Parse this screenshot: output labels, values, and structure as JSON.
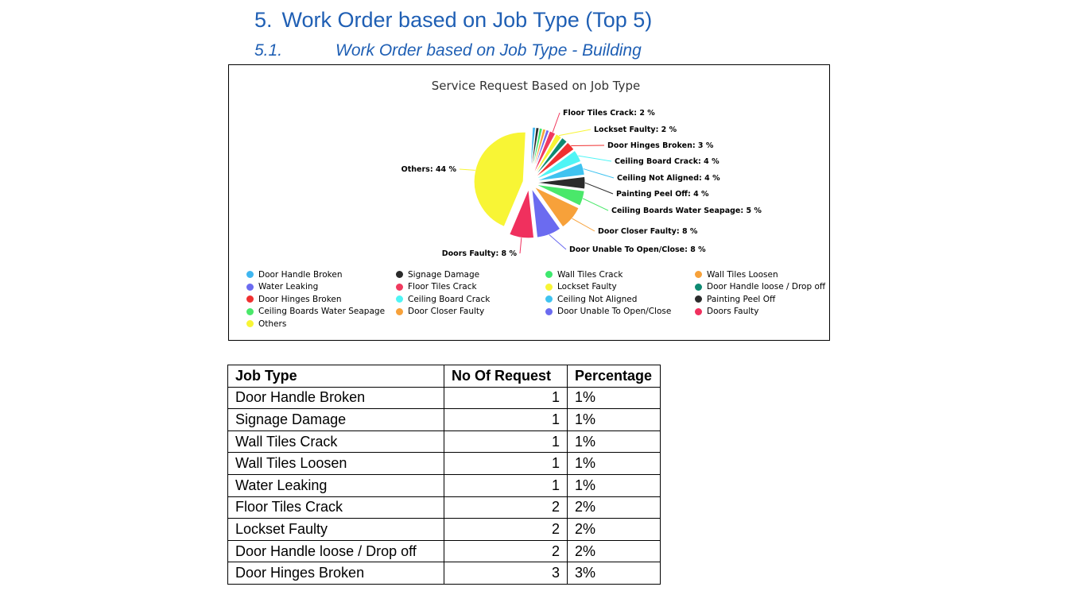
{
  "heading": {
    "number": "5.",
    "title": "Work Order based on Job Type (Top 5)"
  },
  "subheading": {
    "number": "5.1.",
    "title": "Work Order based on Job Type - Building"
  },
  "chart_data": {
    "type": "pie",
    "title": "Service Request Based on Job Type",
    "slices": [
      {
        "name": "Door Handle Broken",
        "value": 1,
        "color": "#3fb6f0",
        "label": ""
      },
      {
        "name": "Signage Damage",
        "value": 1,
        "color": "#2b2b2b",
        "label": ""
      },
      {
        "name": "Wall Tiles Crack",
        "value": 1,
        "color": "#3ee86e",
        "label": ""
      },
      {
        "name": "Wall Tiles Loosen",
        "value": 1,
        "color": "#f7a13a",
        "label": ""
      },
      {
        "name": "Water Leaking",
        "value": 1,
        "color": "#6b6bf0",
        "label": ""
      },
      {
        "name": "Floor Tiles Crack",
        "value": 2,
        "color": "#f03a5e",
        "label": "Floor Tiles Crack: 2 %"
      },
      {
        "name": "Lockset Faulty",
        "value": 2,
        "color": "#f8f535",
        "label": "Lockset Faulty: 2 %"
      },
      {
        "name": "Door Handle loose / Drop off",
        "value": 2,
        "color": "#0e8a72",
        "label": ""
      },
      {
        "name": "Door Hinges Broken",
        "value": 3,
        "color": "#f03030",
        "label": "Door Hinges Broken: 3 %"
      },
      {
        "name": "Ceiling Board Crack",
        "value": 4,
        "color": "#4ff5f5",
        "label": "Ceiling Board Crack: 4 %"
      },
      {
        "name": "Ceiling Not Aligned",
        "value": 4,
        "color": "#3fc3f0",
        "label": "Ceiling Not Aligned: 4 %"
      },
      {
        "name": "Painting Peel Off",
        "value": 4,
        "color": "#2b2b2b",
        "label": "Painting Peel Off: 4 %"
      },
      {
        "name": "Ceiling Boards Water Seapage",
        "value": 5,
        "color": "#4ae86a",
        "label": "Ceiling Boards Water Seapage: 5 %"
      },
      {
        "name": "Door Closer Faulty",
        "value": 8,
        "color": "#f7a13a",
        "label": "Door Closer Faulty: 8 %"
      },
      {
        "name": "Door Unable To Open/Close",
        "value": 8,
        "color": "#6b6bf0",
        "label": "Door Unable To Open/Close: 8 %"
      },
      {
        "name": "Doors Faulty",
        "value": 8,
        "color": "#f0305e",
        "label": "Doors Faulty: 8 %"
      },
      {
        "name": "Others",
        "value": 44,
        "color": "#f8f535",
        "label": "Others: 44 %"
      }
    ],
    "legend_position": "bottom"
  },
  "table": {
    "headers": [
      "Job Type",
      "No Of Request",
      "Percentage"
    ],
    "rows": [
      [
        "Door Handle Broken",
        "1",
        "1%"
      ],
      [
        "Signage Damage",
        "1",
        "1%"
      ],
      [
        "Wall Tiles Crack",
        "1",
        "1%"
      ],
      [
        "Wall Tiles Loosen",
        "1",
        "1%"
      ],
      [
        "Water Leaking",
        "1",
        "1%"
      ],
      [
        "Floor Tiles Crack",
        "2",
        "2%"
      ],
      [
        "Lockset Faulty",
        "2",
        "2%"
      ],
      [
        "Door Handle loose / Drop off",
        "2",
        "2%"
      ],
      [
        "Door Hinges Broken",
        "3",
        "3%"
      ]
    ]
  }
}
